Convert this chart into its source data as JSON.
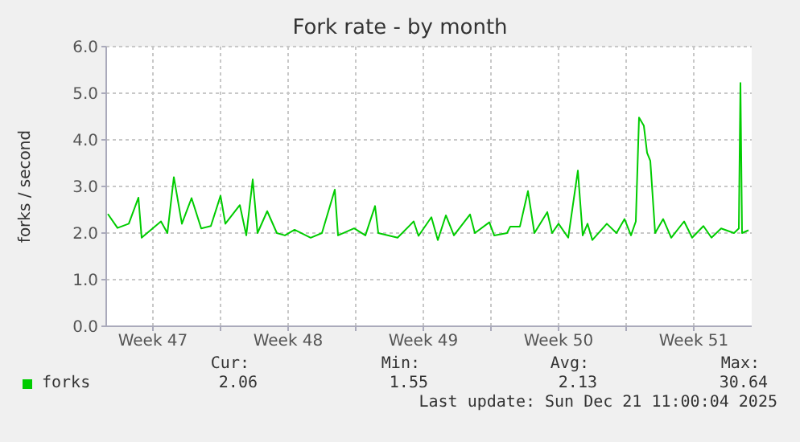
{
  "chart_data": {
    "type": "line",
    "title": "Fork rate - by month",
    "ylabel": "forks / second",
    "x": [
      "2025-11-18T04:00",
      "2025-11-18T16:00",
      "2025-11-19T06:00",
      "2025-11-19T18:00",
      "2025-11-19T22:00",
      "2025-11-20T22:00",
      "2025-11-21T06:00",
      "2025-11-21T14:00",
      "2025-11-22T00:00",
      "2025-11-22T12:00",
      "2025-11-23T00:00",
      "2025-11-23T12:00",
      "2025-11-24T00:00",
      "2025-11-24T06:00",
      "2025-11-25T00:00",
      "2025-11-25T08:00",
      "2025-11-25T16:00",
      "2025-11-25T22:00",
      "2025-11-26T10:00",
      "2025-11-26T22:00",
      "2025-11-27T08:00",
      "2025-11-27T20:00",
      "2025-11-28T16:00",
      "2025-11-29T06:00",
      "2025-11-29T22:00",
      "2025-11-30T02:00",
      "2025-11-30T22:00",
      "2025-12-01T12:00",
      "2025-12-02T00:00",
      "2025-12-02T04:00",
      "2025-12-03T04:00",
      "2025-12-04T00:00",
      "2025-12-04T06:00",
      "2025-12-04T22:00",
      "2025-12-05T06:00",
      "2025-12-05T16:00",
      "2025-12-06T02:00",
      "2025-12-06T22:00",
      "2025-12-07T04:00",
      "2025-12-07T22:00",
      "2025-12-08T04:00",
      "2025-12-08T20:00",
      "2025-12-09T00:00",
      "2025-12-09T12:00",
      "2025-12-09T22:00",
      "2025-12-10T06:00",
      "2025-12-10T22:00",
      "2025-12-11T04:00",
      "2025-12-11T12:00",
      "2025-12-12T00:00",
      "2025-12-12T12:00",
      "2025-12-12T18:00",
      "2025-12-13T00:00",
      "2025-12-13T06:00",
      "2025-12-14T00:00",
      "2025-12-14T12:00",
      "2025-12-14T22:00",
      "2025-12-15T06:00",
      "2025-12-15T12:00",
      "2025-12-15T16:00",
      "2025-12-15T22:00",
      "2025-12-16T02:00",
      "2025-12-16T06:00",
      "2025-12-16T12:00",
      "2025-12-16T22:00",
      "2025-12-17T08:00",
      "2025-12-18T00:00",
      "2025-12-18T10:00",
      "2025-12-19T00:00",
      "2025-12-19T10:00",
      "2025-12-19T22:00",
      "2025-12-20T14:00",
      "2025-12-20T20:00",
      "2025-12-20T22:00",
      "2025-12-21T00:00",
      "2025-12-21T08:00"
    ],
    "series": [
      {
        "name": "forks",
        "color": "#00cc00",
        "values": [
          2.41,
          2.11,
          2.2,
          2.76,
          1.9,
          2.25,
          2.0,
          3.2,
          2.2,
          2.75,
          2.1,
          2.15,
          2.8,
          2.2,
          2.6,
          1.95,
          3.15,
          2.0,
          2.47,
          2.0,
          1.95,
          2.07,
          1.9,
          2.0,
          2.93,
          1.95,
          2.1,
          1.95,
          2.58,
          2.0,
          1.9,
          2.25,
          1.94,
          2.34,
          1.85,
          2.38,
          1.95,
          2.4,
          2.0,
          2.23,
          1.95,
          2.0,
          2.14,
          2.14,
          2.9,
          2.0,
          2.45,
          2.0,
          2.2,
          1.9,
          3.34,
          1.95,
          2.2,
          1.85,
          2.2,
          2.0,
          2.3,
          1.95,
          2.25,
          4.48,
          4.3,
          3.72,
          3.55,
          2.0,
          2.3,
          1.9,
          2.25,
          1.9,
          2.15,
          1.9,
          2.1,
          2.0,
          2.1,
          5.22,
          2.0,
          2.06
        ]
      }
    ],
    "xlim": [
      "2025-11-18T02:00",
      "2025-12-21T12:00"
    ],
    "xticks": [
      {
        "value": "2025-11-20T12:00",
        "label": "Week 47"
      },
      {
        "value": "2025-11-24T00:00",
        "label": null
      },
      {
        "value": "2025-11-27T12:00",
        "label": "Week 48"
      },
      {
        "value": "2025-12-01T00:00",
        "label": null
      },
      {
        "value": "2025-12-04T12:00",
        "label": "Week 49"
      },
      {
        "value": "2025-12-08T00:00",
        "label": null
      },
      {
        "value": "2025-12-11T12:00",
        "label": "Week 50"
      },
      {
        "value": "2025-12-15T00:00",
        "label": null
      },
      {
        "value": "2025-12-18T12:00",
        "label": "Week 51"
      }
    ],
    "ylim": [
      0,
      6
    ],
    "yticks": [
      {
        "value": 0,
        "label": "0.0"
      },
      {
        "value": 1,
        "label": "1.0"
      },
      {
        "value": 2,
        "label": "2.0"
      },
      {
        "value": 3,
        "label": "3.0"
      },
      {
        "value": 4,
        "label": "4.0"
      },
      {
        "value": 5,
        "label": "5.0"
      },
      {
        "value": 6,
        "label": "6.0"
      }
    ],
    "grid": true,
    "legend": "bottom left",
    "marker": "none",
    "line_style": "solid",
    "annotations": [
      "Cur:",
      "2.06",
      "Min:",
      "1.55",
      "Avg:",
      "2.13",
      "Max:",
      "30.64",
      "Last update: Sun Dec 21 11:00:04 2025"
    ]
  }
}
